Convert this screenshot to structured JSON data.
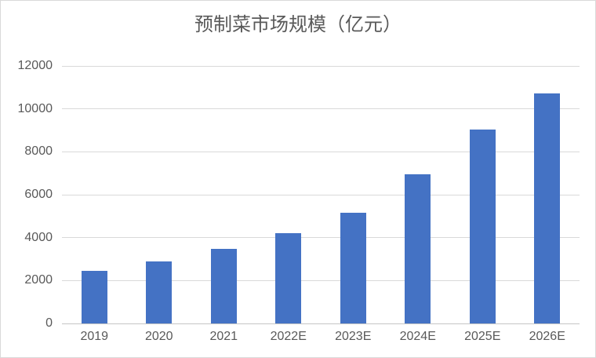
{
  "chart_data": {
    "type": "bar",
    "title": "预制菜市场规模（亿元）",
    "categories": [
      "2019",
      "2020",
      "2021",
      "2022E",
      "2023E",
      "2024E",
      "2025E",
      "2026E"
    ],
    "values": [
      2445,
      2888,
      3459,
      4196,
      5165,
      6950,
      9050,
      10720
    ],
    "xlabel": "",
    "ylabel": "",
    "ylim": [
      0,
      12000
    ],
    "yticks": [
      0,
      2000,
      4000,
      6000,
      8000,
      10000,
      12000
    ],
    "grid": true,
    "legend": "none"
  },
  "colors": {
    "bar": "#4472C4",
    "gridline": "#D9D9D9",
    "axis_line": "#C6C6C6",
    "label": "#595959",
    "title": "#595959",
    "border": "#D9D9D9",
    "background": "#FFFFFF"
  }
}
